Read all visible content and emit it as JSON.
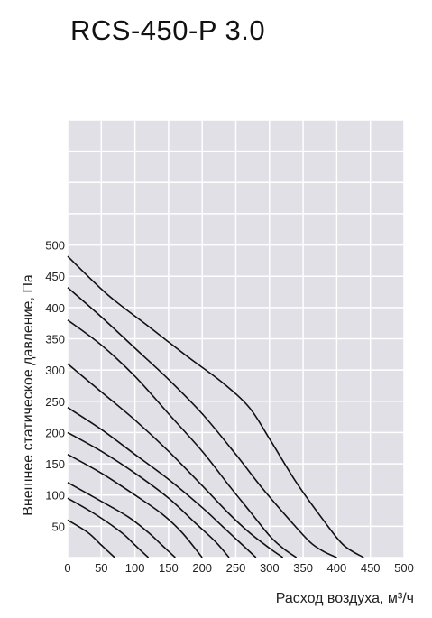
{
  "title": "RCS-450-P 3.0",
  "chart_data": {
    "type": "line",
    "title": "RCS-450-P 3.0",
    "xlabel": "Расход воздуха, м³/ч",
    "ylabel": "Внешнее статическое давление, Па",
    "xlim": [
      0,
      500
    ],
    "ylim": [
      0,
      700
    ],
    "x_ticks": [
      "0",
      "50",
      "100",
      "150",
      "200",
      "250",
      "300",
      "350",
      "400",
      "450",
      "500"
    ],
    "y_ticks": [
      "50",
      "100",
      "150",
      "200",
      "250",
      "300",
      "350",
      "400",
      "450",
      "500"
    ],
    "grid": true,
    "background": "#e0e0e6",
    "line_color": "#111111",
    "series": [
      {
        "x": [
          0,
          60,
          120,
          180,
          230,
          270,
          300,
          340,
          380,
          410,
          440
        ],
        "values": [
          482,
          420,
          370,
          320,
          280,
          240,
          190,
          120,
          60,
          20,
          0
        ]
      },
      {
        "x": [
          0,
          50,
          100,
          150,
          200,
          250,
          290,
          330,
          360,
          380,
          400
        ],
        "values": [
          432,
          385,
          335,
          285,
          230,
          165,
          110,
          60,
          25,
          10,
          0
        ]
      },
      {
        "x": [
          0,
          50,
          100,
          150,
          200,
          240,
          270,
          300,
          320,
          340
        ],
        "values": [
          380,
          340,
          290,
          230,
          170,
          115,
          75,
          35,
          15,
          0
        ]
      },
      {
        "x": [
          0,
          50,
          100,
          150,
          200,
          240,
          270,
          300,
          320
        ],
        "values": [
          310,
          265,
          220,
          170,
          115,
          70,
          40,
          15,
          0
        ]
      },
      {
        "x": [
          0,
          50,
          100,
          150,
          200,
          230,
          260,
          280
        ],
        "values": [
          240,
          205,
          165,
          125,
          80,
          50,
          20,
          0
        ]
      },
      {
        "x": [
          0,
          50,
          100,
          150,
          190,
          220,
          240
        ],
        "values": [
          200,
          170,
          135,
          95,
          55,
          25,
          0
        ]
      },
      {
        "x": [
          0,
          50,
          100,
          140,
          170,
          200
        ],
        "values": [
          165,
          135,
          100,
          70,
          40,
          0
        ]
      },
      {
        "x": [
          0,
          50,
          90,
          120,
          140,
          160
        ],
        "values": [
          120,
          90,
          65,
          40,
          20,
          0
        ]
      },
      {
        "x": [
          0,
          40,
          80,
          100,
          120
        ],
        "values": [
          95,
          70,
          40,
          20,
          0
        ]
      },
      {
        "x": [
          0,
          30,
          50,
          70
        ],
        "values": [
          60,
          40,
          20,
          0
        ]
      }
    ]
  }
}
